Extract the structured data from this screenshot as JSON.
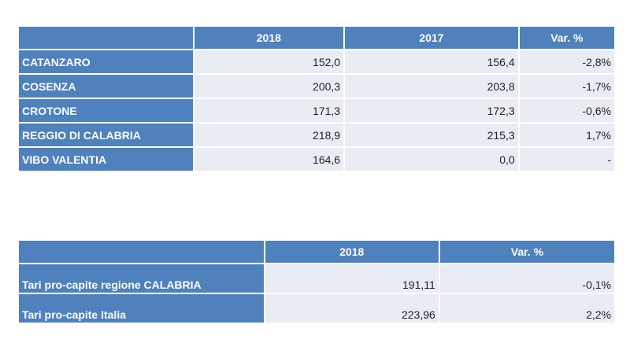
{
  "table1": {
    "headers": [
      "",
      "2018",
      "2017",
      "Var. %"
    ],
    "rows": [
      {
        "name": "CATANZARO",
        "v2018": "152,0",
        "v2017": "156,4",
        "var": "-2,8%"
      },
      {
        "name": "COSENZA",
        "v2018": "200,3",
        "v2017": "203,8",
        "var": "-1,7%"
      },
      {
        "name": "CROTONE",
        "v2018": "171,3",
        "v2017": "172,3",
        "var": "-0,6%"
      },
      {
        "name": "REGGIO DI CALABRIA",
        "v2018": "218,9",
        "v2017": "215,3",
        "var": "1,7%"
      },
      {
        "name": "VIBO VALENTIA",
        "v2018": "164,6",
        "v2017": "0,0",
        "var": "-"
      }
    ]
  },
  "table2": {
    "headers": [
      "",
      "2018",
      "Var. %"
    ],
    "rows": [
      {
        "name": "Tari pro-capite regione CALABRIA",
        "v2018": "191,11",
        "var": "-0,1%"
      },
      {
        "name": "Tari pro-capite Italia",
        "v2018": "223,96",
        "var": "2,2%"
      }
    ]
  },
  "colors": {
    "header_bg": "#4f81bd",
    "cell_bg": "#e9ecf3",
    "header_text": "#ffffff"
  }
}
